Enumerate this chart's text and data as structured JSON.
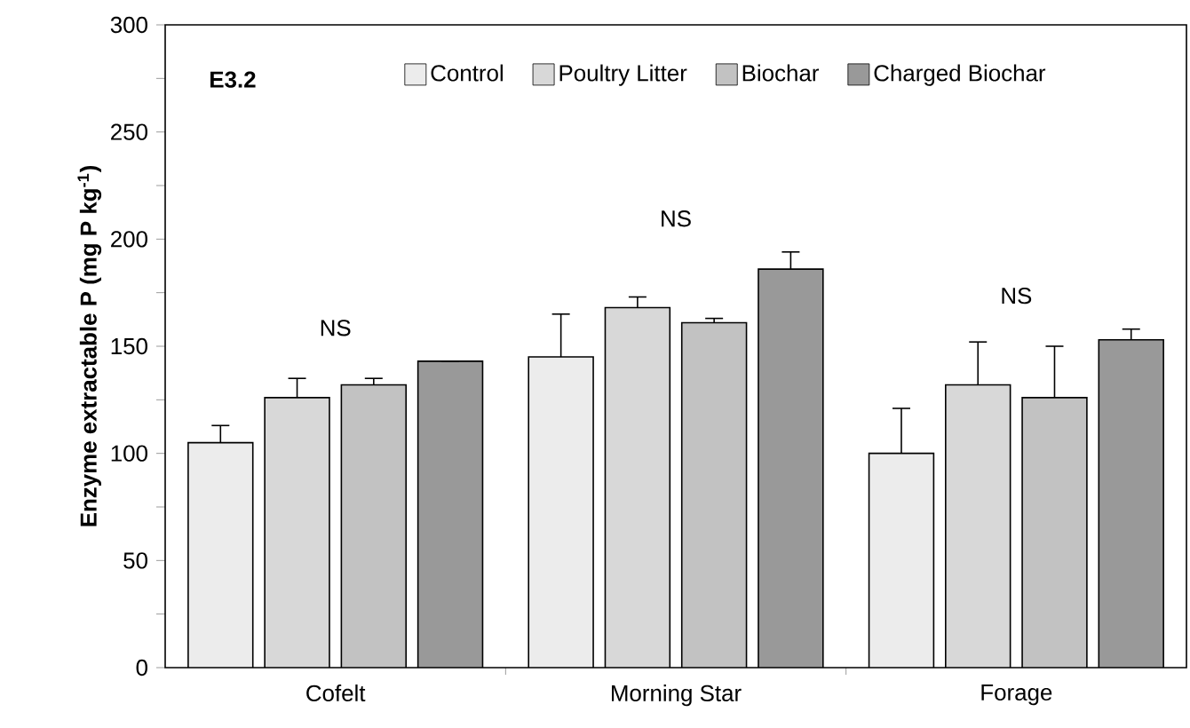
{
  "chart_data": {
    "type": "bar",
    "ylabel": "Enzyme extractable P (mg P kg$^{-1}$)",
    "categories": [
      "Cofelt",
      "Morning Star",
      "Forage"
    ],
    "series": [
      {
        "name": "Control",
        "color": "#ececec",
        "values": [
          105,
          145,
          100
        ],
        "errors": [
          8,
          20,
          21
        ]
      },
      {
        "name": "Poultry Litter",
        "color": "#d8d8d8",
        "values": [
          126,
          168,
          132
        ],
        "errors": [
          9,
          5,
          20
        ]
      },
      {
        "name": "Biochar",
        "color": "#c2c2c2",
        "values": [
          132,
          161,
          126
        ],
        "errors": [
          3,
          2,
          24
        ]
      },
      {
        "name": "Charged Biochar",
        "color": "#999999",
        "values": [
          143,
          186,
          153
        ],
        "errors": [
          null,
          8,
          5
        ]
      }
    ],
    "ylim": [
      0,
      300
    ],
    "yticks": [
      0,
      {
        "value": 25,
        "label": null
      },
      50,
      {
        "value": 75,
        "label": null
      },
      100,
      {
        "value": 125,
        "label": null
      },
      150,
      {
        "value": 175,
        "label": null
      },
      200,
      {
        "value": 225,
        "label": null
      },
      250,
      {
        "value": 275,
        "label": null
      },
      300
    ],
    "annotations": [
      "E3.2",
      "NS",
      "NS",
      "NS"
    ],
    "legend": "top",
    "grid": false
  }
}
